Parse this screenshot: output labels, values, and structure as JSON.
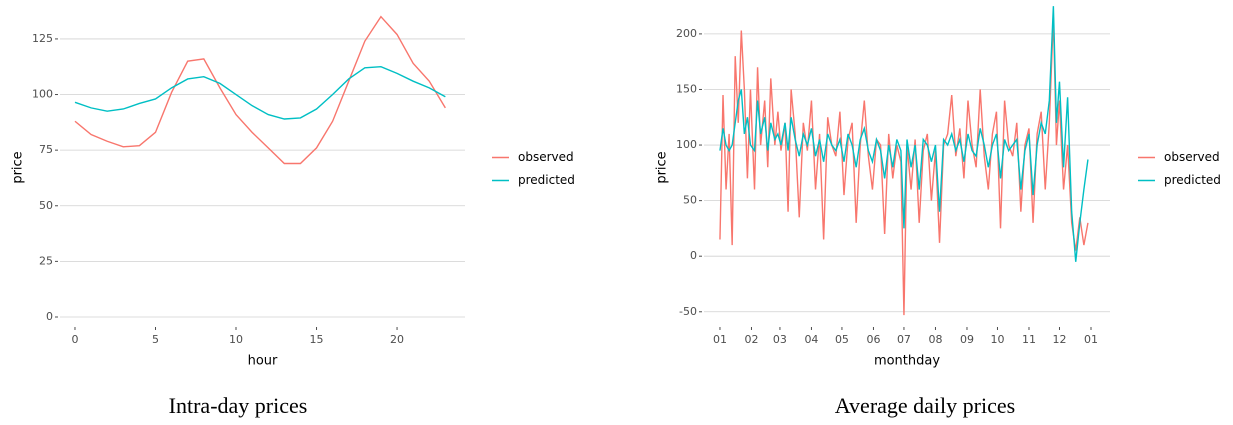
{
  "chart_data": [
    {
      "type": "line",
      "title": "Intra-day prices",
      "x_label": "hour",
      "y_label": "price",
      "x": [
        0,
        1,
        2,
        3,
        4,
        5,
        6,
        7,
        8,
        9,
        10,
        11,
        12,
        13,
        14,
        15,
        16,
        17,
        18,
        19,
        20,
        21,
        22,
        23
      ],
      "series": [
        {
          "name": "observed",
          "color": "#F8766D",
          "values": [
            88,
            82,
            79,
            76.5,
            77,
            83,
            101,
            115,
            116,
            103,
            91,
            83,
            76,
            69,
            69,
            76,
            88,
            106,
            124,
            135,
            127,
            114,
            106,
            94
          ]
        },
        {
          "name": "predicted",
          "color": "#00BFC4",
          "values": [
            96.5,
            94,
            92.5,
            93.5,
            96,
            98,
            103,
            107,
            108,
            105,
            100,
            95,
            91,
            89,
            89.5,
            93.5,
            100,
            107,
            112,
            112.5,
            109.5,
            106,
            103,
            99
          ]
        }
      ],
      "xlim": [
        -0.93,
        24.22
      ],
      "xticks": [
        0,
        5,
        10,
        15,
        20
      ],
      "ylim": [
        -3.6,
        138
      ],
      "yticks": [
        0,
        25,
        50,
        75,
        100,
        125
      ],
      "grid": "y",
      "legend": "right"
    },
    {
      "type": "line",
      "title": "Average daily prices",
      "x_label": "monthday",
      "y_label": "price",
      "x": [
        0,
        3,
        6,
        9,
        12,
        15,
        18,
        21,
        24,
        27,
        30,
        34,
        37,
        40,
        44,
        47,
        50,
        54,
        57,
        60,
        64,
        67,
        70,
        74,
        78,
        82,
        86,
        90,
        94,
        98,
        102,
        106,
        110,
        114,
        118,
        122,
        126,
        130,
        134,
        138,
        142,
        146,
        150,
        154,
        158,
        162,
        166,
        170,
        174,
        178,
        181,
        184,
        188,
        192,
        196,
        200,
        204,
        208,
        212,
        216,
        220,
        224,
        228,
        232,
        236,
        240,
        244,
        248,
        252,
        256,
        260,
        264,
        268,
        272,
        276,
        280,
        284,
        288,
        292,
        296,
        300,
        304,
        308,
        312,
        316,
        320,
        324,
        328,
        331,
        334,
        338,
        342,
        346,
        350,
        354,
        358,
        362
      ],
      "series": [
        {
          "name": "observed",
          "color": "#F8766D",
          "values": [
            15,
            145,
            60,
            110,
            10,
            180,
            120,
            203,
            150,
            70,
            150,
            60,
            170,
            100,
            140,
            80,
            160,
            100,
            130,
            95,
            120,
            40,
            150,
            110,
            35,
            120,
            95,
            140,
            60,
            110,
            15,
            125,
            100,
            90,
            130,
            55,
            105,
            120,
            30,
            100,
            140,
            90,
            60,
            105,
            100,
            20,
            110,
            70,
            100,
            85,
            -53,
            100,
            60,
            105,
            30,
            95,
            110,
            50,
            95,
            12,
            100,
            110,
            145,
            90,
            115,
            70,
            140,
            100,
            80,
            150,
            90,
            60,
            110,
            130,
            25,
            140,
            100,
            90,
            120,
            40,
            100,
            115,
            30,
            110,
            130,
            60,
            120,
            215,
            100,
            140,
            60,
            100,
            30,
            5,
            35,
            10,
            30
          ]
        },
        {
          "name": "predicted",
          "color": "#00BFC4",
          "values": [
            95,
            115,
            100,
            95,
            100,
            120,
            140,
            150,
            110,
            125,
            100,
            95,
            140,
            110,
            125,
            95,
            120,
            105,
            110,
            100,
            120,
            95,
            125,
            105,
            90,
            110,
            100,
            115,
            90,
            105,
            85,
            110,
            100,
            95,
            105,
            85,
            110,
            100,
            80,
            105,
            115,
            95,
            85,
            105,
            95,
            70,
            100,
            80,
            105,
            95,
            25,
            105,
            80,
            100,
            60,
            105,
            100,
            85,
            100,
            40,
            105,
            100,
            110,
            95,
            105,
            85,
            110,
            95,
            90,
            115,
            100,
            80,
            100,
            110,
            70,
            105,
            95,
            100,
            105,
            60,
            95,
            110,
            55,
            100,
            120,
            110,
            140,
            225,
            120,
            157,
            80,
            143,
            40,
            -5,
            30,
            60,
            87
          ]
        }
      ],
      "xlim": [
        -15.7,
        383.7
      ],
      "xticks": [
        {
          "value": 0,
          "label": "01"
        },
        {
          "value": 31,
          "label": "02"
        },
        {
          "value": 59,
          "label": "03"
        },
        {
          "value": 90,
          "label": "04"
        },
        {
          "value": 120,
          "label": "05"
        },
        {
          "value": 151,
          "label": "06"
        },
        {
          "value": 181,
          "label": "07"
        },
        {
          "value": 212,
          "label": "08"
        },
        {
          "value": 243,
          "label": "09"
        },
        {
          "value": 273,
          "label": "10"
        },
        {
          "value": 304,
          "label": "11"
        },
        {
          "value": 334,
          "label": "12"
        },
        {
          "value": 365,
          "label": "01"
        }
      ],
      "ylim": [
        -61.9,
        221.5
      ],
      "yticks": [
        -50,
        0,
        50,
        100,
        150,
        200
      ],
      "grid": "y",
      "legend": "right"
    }
  ]
}
